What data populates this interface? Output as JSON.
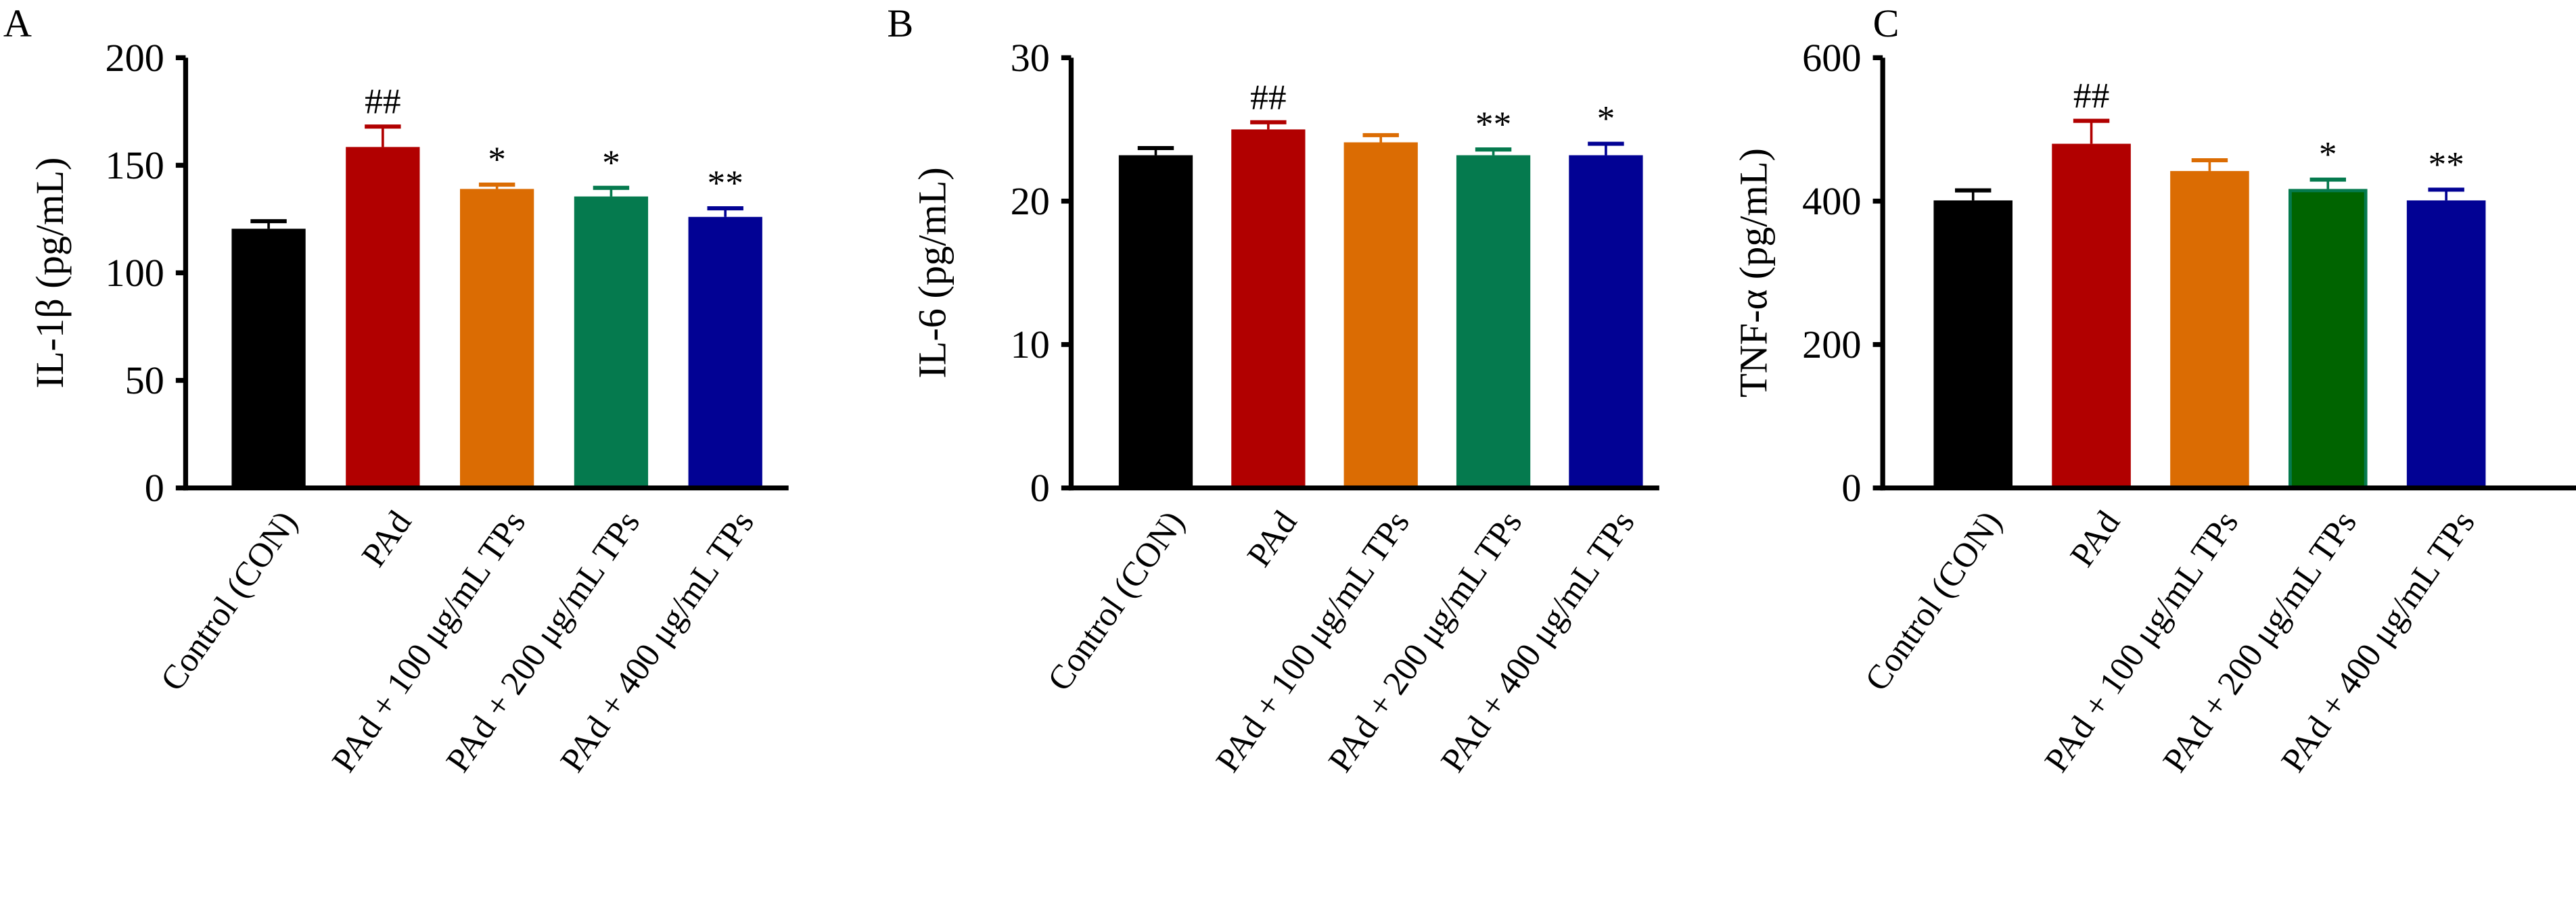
{
  "chart_data": [
    {
      "type": "bar",
      "panel": "A",
      "ylabel": "IL-1β (pg/mL)",
      "ylim": [
        0,
        200
      ],
      "yticks": [
        0,
        50,
        100,
        150,
        200
      ],
      "categories": [
        "Control (CON)",
        "PAd",
        "PAd + 100 μg/mL TPs",
        "PAd + 200 μg/mL TPs",
        "PAd + 400 μg/mL TPs"
      ],
      "values": [
        120.5,
        158.5,
        139,
        135.5,
        126
      ],
      "errors": [
        3.5,
        9.5,
        2,
        4,
        4
      ],
      "annotations": [
        "",
        "##",
        "*",
        "*",
        "**"
      ],
      "colors": [
        "#000000",
        "#b10000",
        "#db6c03",
        "#057a4e",
        "#020294"
      ],
      "edge_colors": [
        "#000000",
        "#b10000",
        "#db6c03",
        "#057a4e",
        "#020294"
      ]
    },
    {
      "type": "bar",
      "panel": "B",
      "ylabel": "IL-6 (pg/mL)",
      "ylim": [
        0,
        30
      ],
      "yticks": [
        0,
        10,
        20,
        30
      ],
      "categories": [
        "Control (CON)",
        "PAd",
        "PAd + 100 μg/mL TPs",
        "PAd + 200 μg/mL TPs",
        "PAd + 400 μg/mL TPs"
      ],
      "values": [
        23.2,
        25,
        24.1,
        23.2,
        23.2
      ],
      "errors": [
        0.5,
        0.5,
        0.5,
        0.4,
        0.8
      ],
      "annotations": [
        "",
        "##",
        "",
        "**",
        "*"
      ],
      "colors": [
        "#000000",
        "#b10000",
        "#db6c03",
        "#057a4e",
        "#020294"
      ],
      "edge_colors": [
        "#000000",
        "#b10000",
        "#db6c03",
        "#057a4e",
        "#020294"
      ]
    },
    {
      "type": "bar",
      "panel": "C",
      "ylabel": "TNF-α (pg/mL)",
      "ylim": [
        0,
        600
      ],
      "yticks": [
        0,
        200,
        400,
        600
      ],
      "categories": [
        "Control (CON)",
        "PAd",
        "PAd + 100 μg/mL TPs",
        "PAd + 200 μg/mL TPs",
        "PAd + 400 μg/mL TPs"
      ],
      "values": [
        401,
        480,
        442,
        417,
        401
      ],
      "errors": [
        14,
        32,
        15,
        13,
        15
      ],
      "annotations": [
        "",
        "##",
        "",
        "*",
        "**"
      ],
      "colors": [
        "#000000",
        "#b10000",
        "#db6c03",
        "#006400",
        "#020294"
      ],
      "edge_colors": [
        "#000000",
        "#b10000",
        "#db6c03",
        "#057a4e",
        "#020294"
      ]
    }
  ]
}
